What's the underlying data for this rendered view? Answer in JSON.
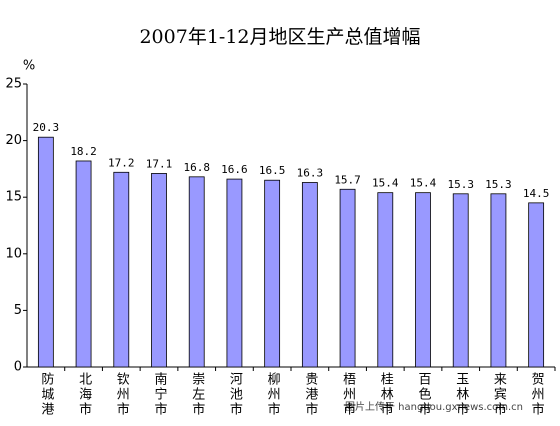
{
  "chart_data": {
    "type": "bar",
    "title": "2007年1-12月地区生产总值增幅",
    "y_unit": "%",
    "categories": [
      "防城港",
      "北海市",
      "钦州市",
      "南宁市",
      "崇左市",
      "河池市",
      "柳州市",
      "贵港市",
      "梧州市",
      "桂林市",
      "百色市",
      "玉林市",
      "来宾市",
      "贺州市"
    ],
    "values": [
      20.3,
      18.2,
      17.2,
      17.1,
      16.8,
      16.6,
      16.5,
      16.3,
      15.7,
      15.4,
      15.4,
      15.3,
      15.3,
      14.5
    ],
    "color": "#9999ff",
    "ylim": [
      0,
      25
    ],
    "yticks": [
      0,
      5,
      10,
      15,
      20,
      25
    ],
    "grid": false,
    "watermark": "图片上传于 hangdou.gxnews.com.cn"
  }
}
